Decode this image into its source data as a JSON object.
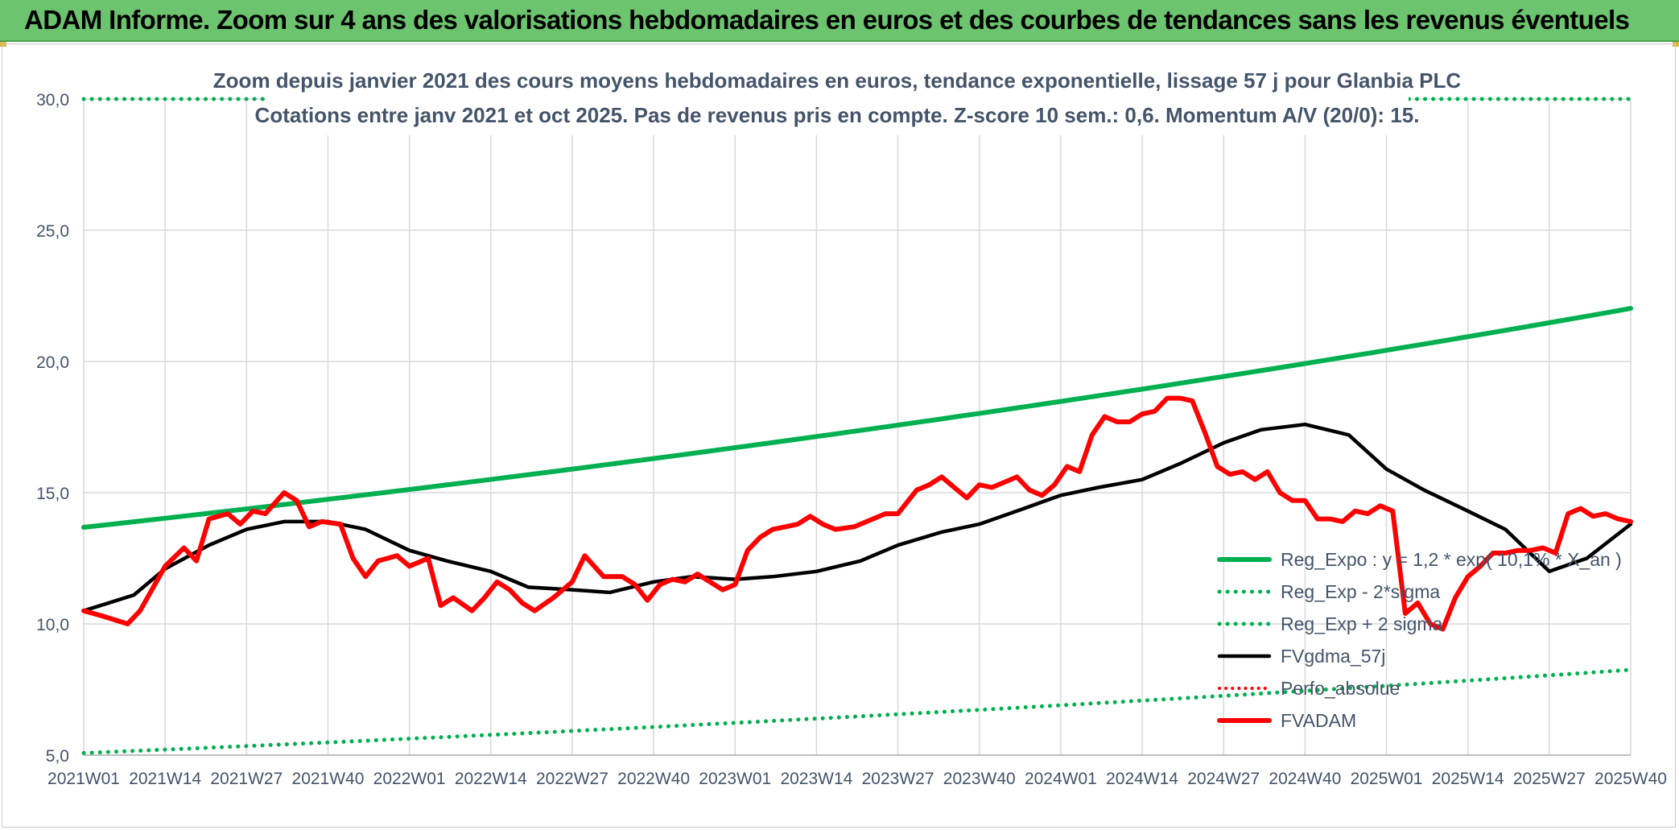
{
  "header": {
    "title": "ADAM Informe. Zoom sur 4 ans des valorisations hebdomadaires en euros et des courbes de tendances sans les revenus éventuels"
  },
  "chart_data": {
    "type": "line",
    "title": "Zoom depuis janvier 2021 des cours moyens hebdomadaires en euros, tendance exponentielle, lissage 57 j pour Glanbia PLC",
    "subtitle": "Cotations entre janv 2021 et oct 2025. Pas de revenus pris en compte. Z-score 10 sem.: 0,6. Momentum A/V (20/0): 15.",
    "ylim": [
      5,
      30
    ],
    "y_ticks": [
      "5,0",
      "10,0",
      "15,0",
      "20,0",
      "25,0",
      "30,0"
    ],
    "x_ticks": [
      "2021W01",
      "2021W14",
      "2021W27",
      "2021W40",
      "2022W01",
      "2022W14",
      "2022W27",
      "2022W40",
      "2023W01",
      "2023W14",
      "2023W27",
      "2023W40",
      "2024W01",
      "2024W14",
      "2024W27",
      "2024W40",
      "2025W01",
      "2025W14",
      "2025W27",
      "2025W40"
    ],
    "grid": true,
    "legend_position": "right",
    "colors": {
      "reg_expo": "#00b050",
      "fvgdma": "#000000",
      "perfo": "#ff0000",
      "fvadam": "#ff0000",
      "grid": "#d9d9d9"
    },
    "series": [
      {
        "name": "Reg_Expo : y = 1,2 * exp( 10,1% * X_an )",
        "style": "solid",
        "x_index": [
          0,
          247
        ],
        "values": [
          13.68,
          22.02
        ]
      },
      {
        "name": "Reg_Exp - 2*sigma",
        "style": "dotted",
        "x_index": [
          0,
          247
        ],
        "values": [
          5.08,
          8.25
        ]
      },
      {
        "name": "Reg_Exp + 2 sigma",
        "style": "dotted",
        "x_index": [
          0,
          247
        ],
        "values": [
          30.0,
          30.0
        ]
      },
      {
        "name": "FVgdma_57j",
        "style": "solid",
        "x_index": [
          0,
          8,
          13,
          20,
          26,
          32,
          39,
          45,
          52,
          58,
          65,
          71,
          78,
          84,
          91,
          97,
          104,
          110,
          117,
          124,
          130,
          137,
          143,
          149,
          156,
          162,
          169,
          175,
          182,
          188,
          195,
          202,
          208,
          214,
          221,
          227,
          234,
          240,
          247
        ],
        "values": [
          10.5,
          11.1,
          12.1,
          13.0,
          13.6,
          13.9,
          13.9,
          13.6,
          12.8,
          12.4,
          12.0,
          11.4,
          11.3,
          11.2,
          11.6,
          11.8,
          11.7,
          11.8,
          12.0,
          12.4,
          13.0,
          13.5,
          13.8,
          14.3,
          14.9,
          15.2,
          15.5,
          16.1,
          16.9,
          17.4,
          17.6,
          17.2,
          15.9,
          15.1,
          14.3,
          13.6,
          12.0,
          12.5,
          13.8
        ]
      },
      {
        "name": "Perfo_absolue",
        "style": "dotted",
        "values": []
      },
      {
        "name": "FVADAM",
        "style": "solid",
        "x_index": [
          0,
          3,
          7,
          9,
          13,
          16,
          18,
          20,
          23,
          25,
          27,
          29,
          32,
          34,
          36,
          38,
          41,
          43,
          45,
          47,
          50,
          52,
          55,
          57,
          59,
          62,
          64,
          66,
          68,
          70,
          72,
          75,
          78,
          80,
          83,
          86,
          88,
          90,
          92,
          94,
          96,
          98,
          100,
          102,
          104,
          106,
          108,
          110,
          112,
          114,
          116,
          118,
          120,
          123,
          125,
          128,
          130,
          133,
          135,
          137,
          139,
          141,
          143,
          145,
          147,
          149,
          151,
          153,
          155,
          157,
          159,
          161,
          163,
          165,
          167,
          169,
          171,
          173,
          175,
          177,
          179,
          181,
          183,
          185,
          187,
          189,
          191,
          193,
          195,
          197,
          199,
          201,
          203,
          205,
          207,
          209,
          211,
          213,
          215,
          217,
          219,
          221,
          223,
          225,
          227,
          229,
          231,
          233,
          235,
          237,
          239,
          241,
          243,
          245,
          247
        ],
        "values": [
          10.5,
          10.3,
          10.0,
          10.5,
          12.2,
          12.9,
          12.4,
          14.0,
          14.2,
          13.8,
          14.3,
          14.2,
          15.0,
          14.7,
          13.7,
          13.9,
          13.8,
          12.5,
          11.8,
          12.4,
          12.6,
          12.2,
          12.5,
          10.7,
          11.0,
          10.5,
          11.0,
          11.6,
          11.3,
          10.8,
          10.5,
          11.0,
          11.6,
          12.6,
          11.8,
          11.8,
          11.5,
          10.9,
          11.5,
          11.7,
          11.6,
          11.9,
          11.6,
          11.3,
          11.5,
          12.8,
          13.3,
          13.6,
          13.7,
          13.8,
          14.1,
          13.8,
          13.6,
          13.7,
          13.9,
          14.2,
          14.2,
          15.1,
          15.3,
          15.6,
          15.2,
          14.8,
          15.3,
          15.2,
          15.4,
          15.6,
          15.1,
          14.9,
          15.3,
          16.0,
          15.8,
          17.2,
          17.9,
          17.7,
          17.7,
          18.0,
          18.1,
          18.6,
          18.6,
          18.5,
          17.3,
          16.0,
          15.7,
          15.8,
          15.5,
          15.8,
          15.0,
          14.7,
          14.7,
          14.0,
          14.0,
          13.9,
          14.3,
          14.2,
          14.5,
          14.3,
          10.4,
          10.8,
          10.0,
          9.8,
          11.0,
          11.8,
          12.2,
          12.7,
          12.7,
          12.8,
          12.8,
          12.9,
          12.7,
          14.2,
          14.4,
          14.1,
          14.2,
          14.0,
          13.9
        ]
      }
    ]
  }
}
